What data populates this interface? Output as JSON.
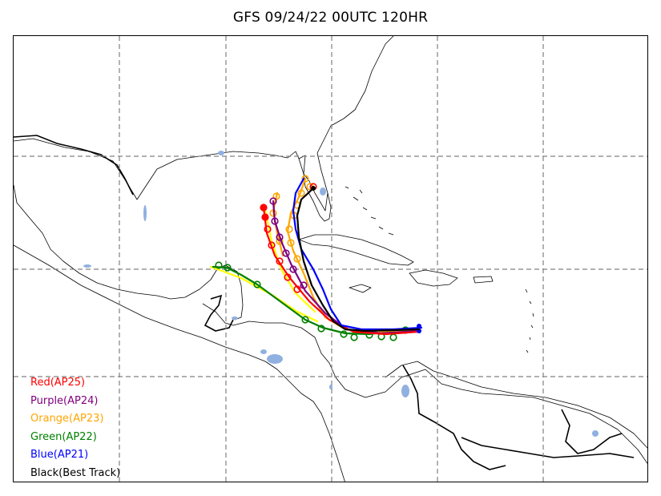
{
  "title": "GFS 09/24/22 00UTC 120HR",
  "legend": [
    {
      "label": "Red(AP25)",
      "color": "#ff0000"
    },
    {
      "label": "Purple(AP24)",
      "color": "#800080"
    },
    {
      "label": "Orange(AP23)",
      "color": "#ffa500"
    },
    {
      "label": "Green(AP22)",
      "color": "#008000"
    },
    {
      "label": "Blue(AP21)",
      "color": "#0000ff"
    },
    {
      "label": "Black(Best Track)",
      "color": "#000000"
    }
  ],
  "colors": {
    "land_outline": "#000000",
    "lakes": "#8fb0e0",
    "grid": "#808080",
    "secondary_track": "#ffff00"
  }
}
